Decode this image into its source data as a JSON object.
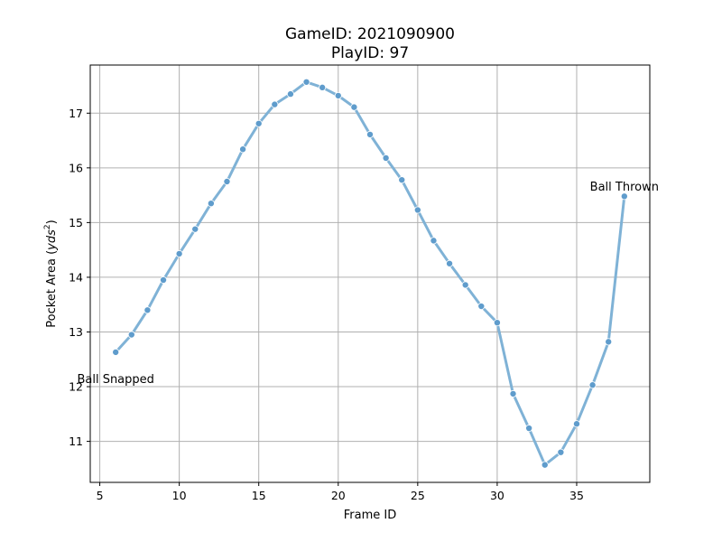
{
  "chart_data": {
    "type": "line",
    "title_line1": "GameID: 2021090900",
    "title_line2": "PlayID: 97",
    "xlabel": "Frame ID",
    "ylabel_main": "Pocket Area (",
    "ylabel_unit": "yds",
    "ylabel_exp": "2",
    "ylabel_close": ")",
    "xlim": [
      4.4,
      39.6
    ],
    "ylim": [
      10.25,
      17.88
    ],
    "xticks": [
      5,
      10,
      15,
      20,
      25,
      30,
      35
    ],
    "yticks": [
      11,
      12,
      13,
      14,
      15,
      16,
      17
    ],
    "grid": true,
    "line_color": "#7fb2d6",
    "marker_color": "#5f9ccc",
    "series": [
      {
        "x": [
          6,
          7,
          8,
          9,
          10,
          11,
          12,
          13,
          14,
          15,
          16,
          17,
          18,
          19,
          20,
          21,
          22,
          23,
          24,
          25,
          26,
          27,
          28,
          29,
          30,
          31,
          32,
          33,
          34,
          35,
          36,
          37,
          38
        ],
        "y": [
          12.63,
          12.95,
          13.4,
          13.95,
          14.43,
          14.88,
          15.35,
          15.75,
          16.34,
          16.81,
          17.16,
          17.35,
          17.57,
          17.47,
          17.32,
          17.11,
          16.61,
          16.18,
          15.78,
          15.23,
          14.67,
          14.25,
          13.86,
          13.47,
          13.17,
          11.87,
          11.24,
          10.57,
          10.8,
          11.32,
          12.03,
          12.82,
          15.48
        ]
      }
    ],
    "annotations": [
      {
        "text": "Ball Snapped",
        "x": 6,
        "y": 12.15
      },
      {
        "text": "Ball Thrown",
        "x": 38,
        "y": 15.67
      }
    ]
  }
}
